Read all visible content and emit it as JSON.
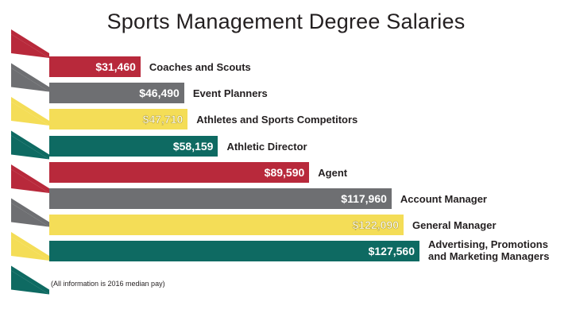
{
  "chart_data": {
    "type": "bar",
    "orientation": "horizontal",
    "title": "Sports Management Degree Salaries",
    "categories": [
      "Coaches and Scouts",
      "Event Planners",
      "Athletes and Sports Competitors",
      "Athletic Director",
      "Agent",
      "Account Manager",
      "General Manager",
      "Advertising, Promotions and Marketing Managers"
    ],
    "values": [
      31460,
      46490,
      47710,
      58159,
      89590,
      117960,
      122090,
      127560
    ],
    "value_labels": [
      "$31,460",
      "$46,490",
      "$47,710",
      "$58,159",
      "$89,590",
      "$117,960",
      "$122,090",
      "$127,560"
    ],
    "colors": [
      "#b8293b",
      "#6e6f72",
      "#f4dd57",
      "#0e6a62",
      "#b8293b",
      "#6e6f72",
      "#f4dd57",
      "#0e6a62"
    ],
    "note": "(All information is 2016 median pay)"
  }
}
